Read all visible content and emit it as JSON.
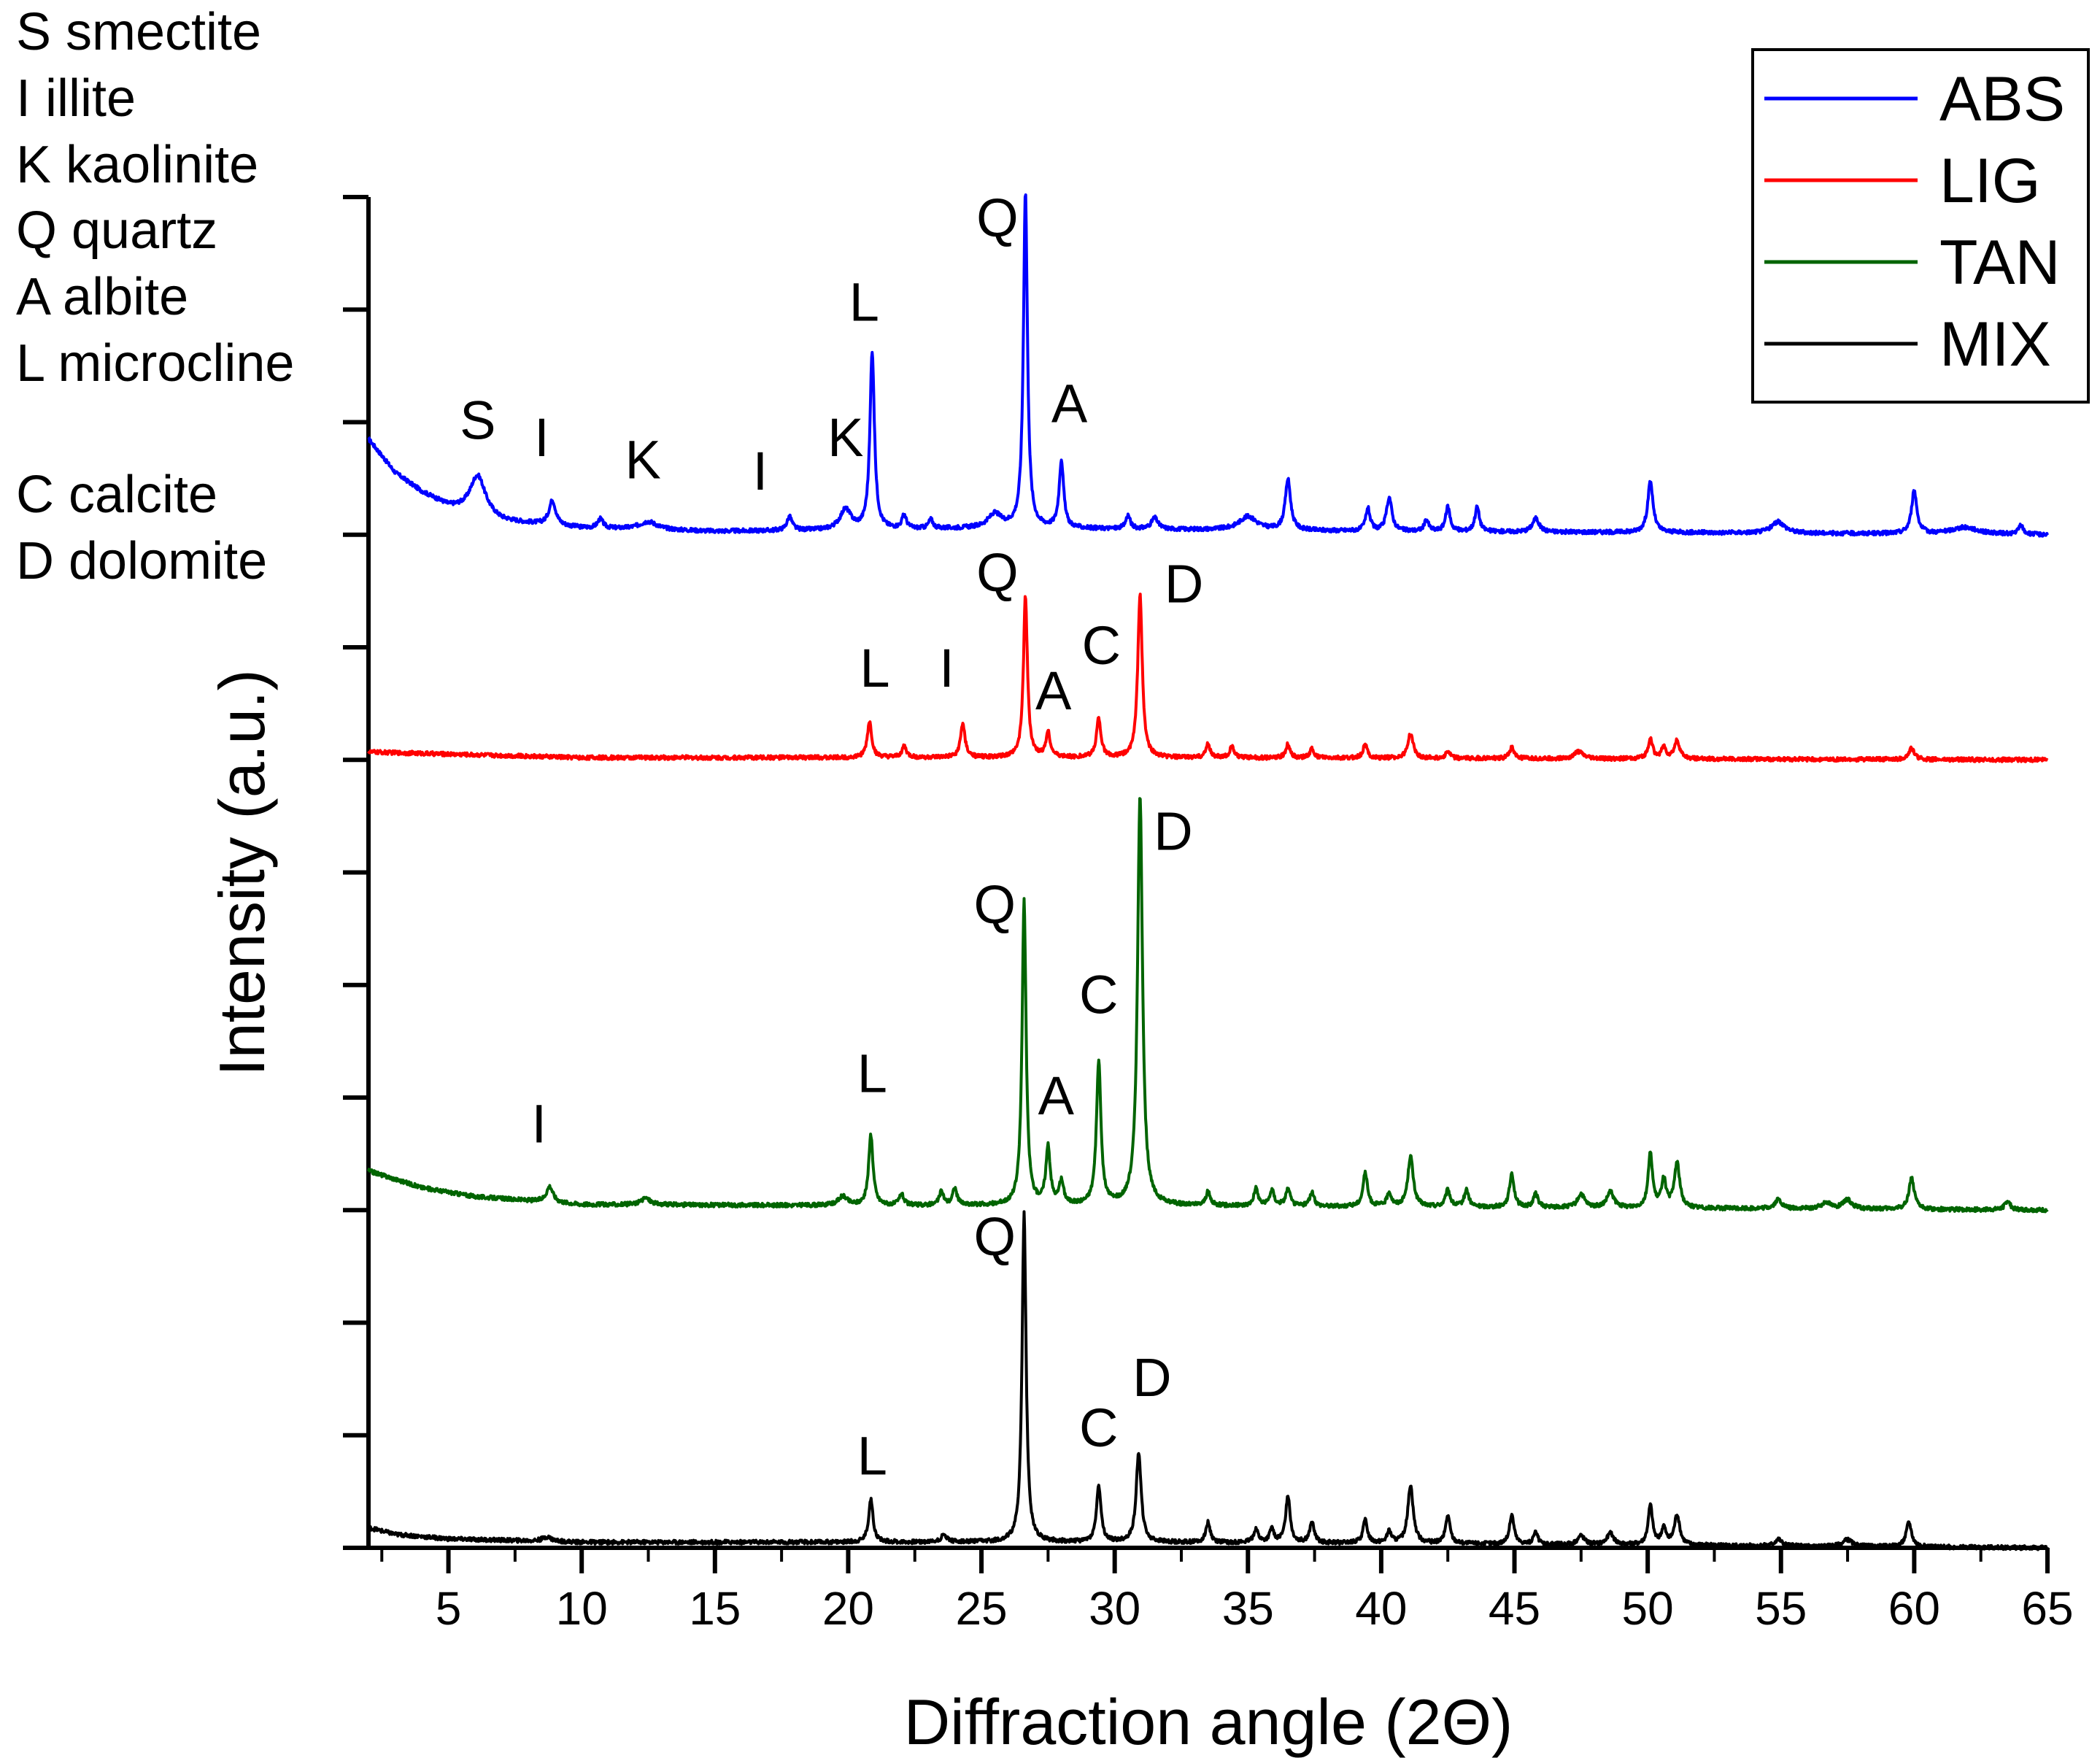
{
  "chart_data": {
    "type": "line",
    "title": "",
    "xlabel": "Diffraction angle (2Θ)",
    "ylabel": "Intensity (a.u.)",
    "xlim": [
      2,
      65
    ],
    "xticks": [
      5,
      10,
      15,
      20,
      25,
      30,
      35,
      40,
      45,
      50,
      55,
      60,
      65
    ],
    "ylim": [
      0,
      12
    ],
    "y_tick_labels_shown": false,
    "legend_position": "top-right",
    "mineral_key": [
      "S smectite",
      "I illite",
      "K kaolinite",
      "Q quartz",
      "A albite",
      "L microcline",
      "C calcite",
      "D dolomite"
    ],
    "series": [
      {
        "name": "ABS",
        "color": "#0000ff",
        "baseline": 9.0,
        "background": [
          [
            2,
            0.85
          ],
          [
            3,
            0.55
          ],
          [
            4,
            0.38
          ],
          [
            5,
            0.25
          ],
          [
            7,
            0.12
          ],
          [
            10,
            0.06
          ],
          [
            15,
            0.03
          ],
          [
            20,
            0.04
          ],
          [
            26,
            0.06
          ],
          [
            30,
            0.05
          ],
          [
            40,
            0.03
          ],
          [
            50,
            0.02
          ],
          [
            65,
            0.0
          ]
        ],
        "peaks": [
          {
            "x": 6.1,
            "h": 0.35,
            "w": 0.35
          },
          {
            "x": 8.9,
            "h": 0.22,
            "w": 0.15
          },
          {
            "x": 10.7,
            "h": 0.08,
            "w": 0.12
          },
          {
            "x": 12.5,
            "h": 0.07,
            "w": 0.4
          },
          {
            "x": 17.8,
            "h": 0.12,
            "w": 0.12
          },
          {
            "x": 19.9,
            "h": 0.18,
            "w": 0.25
          },
          {
            "x": 20.9,
            "h": 1.58,
            "w": 0.1
          },
          {
            "x": 22.1,
            "h": 0.12,
            "w": 0.1
          },
          {
            "x": 23.1,
            "h": 0.08,
            "w": 0.1
          },
          {
            "x": 25.5,
            "h": 0.12,
            "w": 0.3
          },
          {
            "x": 26.65,
            "h": 2.98,
            "w": 0.09
          },
          {
            "x": 28.0,
            "h": 0.6,
            "w": 0.1
          },
          {
            "x": 30.5,
            "h": 0.12,
            "w": 0.1
          },
          {
            "x": 31.5,
            "h": 0.1,
            "w": 0.15
          },
          {
            "x": 35.0,
            "h": 0.12,
            "w": 0.4
          },
          {
            "x": 36.5,
            "h": 0.45,
            "w": 0.12
          },
          {
            "x": 39.5,
            "h": 0.2,
            "w": 0.1
          },
          {
            "x": 40.3,
            "h": 0.3,
            "w": 0.12
          },
          {
            "x": 41.7,
            "h": 0.1,
            "w": 0.1
          },
          {
            "x": 42.5,
            "h": 0.22,
            "w": 0.1
          },
          {
            "x": 43.6,
            "h": 0.22,
            "w": 0.1
          },
          {
            "x": 45.8,
            "h": 0.12,
            "w": 0.15
          },
          {
            "x": 50.1,
            "h": 0.45,
            "w": 0.12
          },
          {
            "x": 54.9,
            "h": 0.1,
            "w": 0.3
          },
          {
            "x": 60.0,
            "h": 0.38,
            "w": 0.12
          },
          {
            "x": 61.9,
            "h": 0.06,
            "w": 0.6
          },
          {
            "x": 64.0,
            "h": 0.08,
            "w": 0.1
          }
        ],
        "peak_labels": [
          {
            "text": "S",
            "x": 6.1,
            "y": 9.85
          },
          {
            "text": "I",
            "x": 8.5,
            "y": 9.7
          },
          {
            "text": "K",
            "x": 12.3,
            "y": 9.5
          },
          {
            "text": "I",
            "x": 16.7,
            "y": 9.4
          },
          {
            "text": "K",
            "x": 19.9,
            "y": 9.7
          },
          {
            "text": "L",
            "x": 20.6,
            "y": 10.9
          },
          {
            "text": "Q",
            "x": 25.6,
            "y": 11.65
          },
          {
            "text": "A",
            "x": 28.3,
            "y": 10.0
          }
        ]
      },
      {
        "name": "LIG",
        "color": "#ff0000",
        "baseline": 7.0,
        "background": [
          [
            2,
            0.07
          ],
          [
            10,
            0.02
          ],
          [
            20,
            0.02
          ],
          [
            30,
            0.02
          ],
          [
            65,
            0.0
          ]
        ],
        "peaks": [
          {
            "x": 20.8,
            "h": 0.32,
            "w": 0.1
          },
          {
            "x": 22.1,
            "h": 0.1,
            "w": 0.1
          },
          {
            "x": 24.3,
            "h": 0.3,
            "w": 0.1
          },
          {
            "x": 26.65,
            "h": 1.43,
            "w": 0.09
          },
          {
            "x": 27.5,
            "h": 0.22,
            "w": 0.1
          },
          {
            "x": 29.4,
            "h": 0.35,
            "w": 0.1
          },
          {
            "x": 30.95,
            "h": 1.45,
            "w": 0.1
          },
          {
            "x": 33.5,
            "h": 0.12,
            "w": 0.1
          },
          {
            "x": 34.4,
            "h": 0.1,
            "w": 0.1
          },
          {
            "x": 36.5,
            "h": 0.12,
            "w": 0.1
          },
          {
            "x": 37.4,
            "h": 0.08,
            "w": 0.1
          },
          {
            "x": 39.4,
            "h": 0.12,
            "w": 0.1
          },
          {
            "x": 41.1,
            "h": 0.22,
            "w": 0.12
          },
          {
            "x": 42.5,
            "h": 0.06,
            "w": 0.1
          },
          {
            "x": 44.9,
            "h": 0.1,
            "w": 0.1
          },
          {
            "x": 47.4,
            "h": 0.06,
            "w": 0.2
          },
          {
            "x": 50.1,
            "h": 0.18,
            "w": 0.1
          },
          {
            "x": 50.6,
            "h": 0.1,
            "w": 0.1
          },
          {
            "x": 51.1,
            "h": 0.16,
            "w": 0.12
          },
          {
            "x": 59.9,
            "h": 0.1,
            "w": 0.12
          }
        ],
        "peak_labels": [
          {
            "text": "Q",
            "x": 25.6,
            "y": 8.5
          },
          {
            "text": "D",
            "x": 32.6,
            "y": 8.4
          },
          {
            "text": "C",
            "x": 29.5,
            "y": 7.85
          },
          {
            "text": "L",
            "x": 21.0,
            "y": 7.65
          },
          {
            "text": "I",
            "x": 23.7,
            "y": 7.65
          },
          {
            "text": "A",
            "x": 27.7,
            "y": 7.45
          }
        ]
      },
      {
        "name": "TAN",
        "color": "#006400",
        "baseline": 3.0,
        "background": [
          [
            2,
            0.35
          ],
          [
            4,
            0.2
          ],
          [
            6,
            0.12
          ],
          [
            10,
            0.05
          ],
          [
            20,
            0.04
          ],
          [
            30,
            0.04
          ],
          [
            40,
            0.03
          ],
          [
            65,
            0.0
          ]
        ],
        "peaks": [
          {
            "x": 8.8,
            "h": 0.14,
            "w": 0.15
          },
          {
            "x": 12.4,
            "h": 0.06,
            "w": 0.2
          },
          {
            "x": 19.8,
            "h": 0.08,
            "w": 0.2
          },
          {
            "x": 20.85,
            "h": 0.62,
            "w": 0.1
          },
          {
            "x": 22.0,
            "h": 0.1,
            "w": 0.1
          },
          {
            "x": 23.5,
            "h": 0.12,
            "w": 0.1
          },
          {
            "x": 24.0,
            "h": 0.15,
            "w": 0.1
          },
          {
            "x": 26.6,
            "h": 2.7,
            "w": 0.09
          },
          {
            "x": 27.5,
            "h": 0.5,
            "w": 0.1
          },
          {
            "x": 28.0,
            "h": 0.2,
            "w": 0.1
          },
          {
            "x": 29.4,
            "h": 1.27,
            "w": 0.1
          },
          {
            "x": 30.95,
            "h": 3.65,
            "w": 0.11
          },
          {
            "x": 33.5,
            "h": 0.12,
            "w": 0.1
          },
          {
            "x": 35.3,
            "h": 0.15,
            "w": 0.1
          },
          {
            "x": 35.9,
            "h": 0.14,
            "w": 0.1
          },
          {
            "x": 36.5,
            "h": 0.15,
            "w": 0.1
          },
          {
            "x": 37.4,
            "h": 0.12,
            "w": 0.1
          },
          {
            "x": 39.4,
            "h": 0.3,
            "w": 0.1
          },
          {
            "x": 40.3,
            "h": 0.12,
            "w": 0.1
          },
          {
            "x": 41.1,
            "h": 0.45,
            "w": 0.12
          },
          {
            "x": 42.5,
            "h": 0.15,
            "w": 0.1
          },
          {
            "x": 43.2,
            "h": 0.15,
            "w": 0.1
          },
          {
            "x": 44.9,
            "h": 0.3,
            "w": 0.1
          },
          {
            "x": 45.8,
            "h": 0.12,
            "w": 0.1
          },
          {
            "x": 47.5,
            "h": 0.12,
            "w": 0.15
          },
          {
            "x": 48.6,
            "h": 0.14,
            "w": 0.15
          },
          {
            "x": 50.1,
            "h": 0.48,
            "w": 0.1
          },
          {
            "x": 50.6,
            "h": 0.25,
            "w": 0.1
          },
          {
            "x": 51.1,
            "h": 0.4,
            "w": 0.12
          },
          {
            "x": 54.9,
            "h": 0.08,
            "w": 0.15
          },
          {
            "x": 56.7,
            "h": 0.06,
            "w": 0.2
          },
          {
            "x": 57.5,
            "h": 0.08,
            "w": 0.2
          },
          {
            "x": 59.9,
            "h": 0.28,
            "w": 0.12
          },
          {
            "x": 63.5,
            "h": 0.08,
            "w": 0.12
          }
        ],
        "peak_labels": [
          {
            "text": "D",
            "x": 32.2,
            "y": 6.2
          },
          {
            "text": "Q",
            "x": 25.5,
            "y": 5.55
          },
          {
            "text": "C",
            "x": 29.4,
            "y": 4.75
          },
          {
            "text": "L",
            "x": 20.9,
            "y": 4.05
          },
          {
            "text": "A",
            "x": 27.8,
            "y": 3.85
          },
          {
            "text": "I",
            "x": 8.4,
            "y": 3.6
          }
        ]
      },
      {
        "name": "MIX",
        "color": "#000000",
        "baseline": 0.0,
        "background": [
          [
            2,
            0.18
          ],
          [
            3,
            0.12
          ],
          [
            5,
            0.08
          ],
          [
            10,
            0.05
          ],
          [
            20,
            0.05
          ],
          [
            30,
            0.05
          ],
          [
            40,
            0.04
          ],
          [
            65,
            0.0
          ]
        ],
        "peaks": [
          {
            "x": 8.7,
            "h": 0.04,
            "w": 0.2
          },
          {
            "x": 20.85,
            "h": 0.38,
            "w": 0.1
          },
          {
            "x": 23.6,
            "h": 0.06,
            "w": 0.15
          },
          {
            "x": 26.6,
            "h": 2.92,
            "w": 0.09
          },
          {
            "x": 29.4,
            "h": 0.5,
            "w": 0.1
          },
          {
            "x": 30.9,
            "h": 0.8,
            "w": 0.11
          },
          {
            "x": 33.5,
            "h": 0.18,
            "w": 0.1
          },
          {
            "x": 35.3,
            "h": 0.12,
            "w": 0.1
          },
          {
            "x": 35.9,
            "h": 0.12,
            "w": 0.1
          },
          {
            "x": 36.5,
            "h": 0.42,
            "w": 0.1
          },
          {
            "x": 37.4,
            "h": 0.18,
            "w": 0.1
          },
          {
            "x": 39.4,
            "h": 0.2,
            "w": 0.1
          },
          {
            "x": 40.3,
            "h": 0.1,
            "w": 0.1
          },
          {
            "x": 41.1,
            "h": 0.52,
            "w": 0.12
          },
          {
            "x": 42.5,
            "h": 0.25,
            "w": 0.1
          },
          {
            "x": 44.9,
            "h": 0.26,
            "w": 0.1
          },
          {
            "x": 45.8,
            "h": 0.1,
            "w": 0.1
          },
          {
            "x": 47.5,
            "h": 0.08,
            "w": 0.15
          },
          {
            "x": 48.6,
            "h": 0.1,
            "w": 0.15
          },
          {
            "x": 50.1,
            "h": 0.35,
            "w": 0.1
          },
          {
            "x": 50.6,
            "h": 0.15,
            "w": 0.1
          },
          {
            "x": 51.1,
            "h": 0.27,
            "w": 0.12
          },
          {
            "x": 54.9,
            "h": 0.06,
            "w": 0.15
          },
          {
            "x": 57.5,
            "h": 0.06,
            "w": 0.2
          },
          {
            "x": 59.8,
            "h": 0.22,
            "w": 0.12
          }
        ],
        "peak_labels": [
          {
            "text": "Q",
            "x": 25.5,
            "y": 2.6
          },
          {
            "text": "D",
            "x": 31.4,
            "y": 1.35
          },
          {
            "text": "C",
            "x": 29.4,
            "y": 0.9
          },
          {
            "text": "L",
            "x": 20.9,
            "y": 0.65
          }
        ]
      }
    ]
  }
}
